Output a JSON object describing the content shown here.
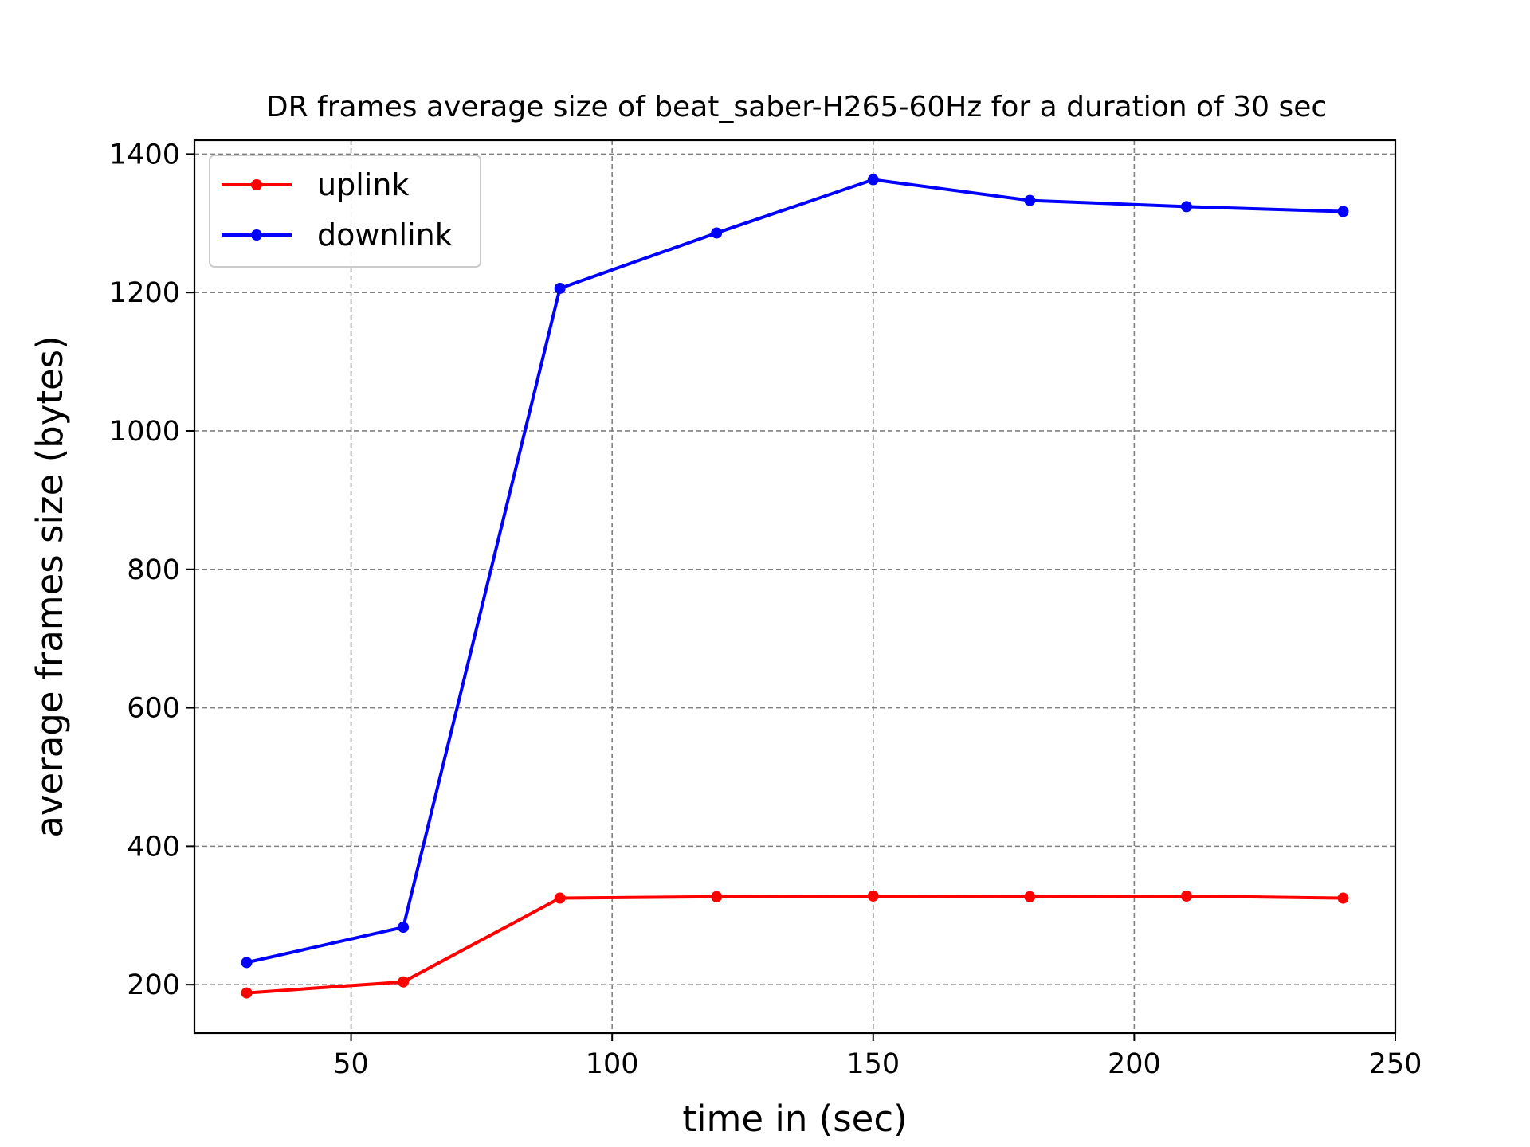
{
  "chart_data": {
    "type": "line",
    "title": "DR frames average size of beat_saber-H265-60Hz for a duration of 30 sec",
    "xlabel": "time in (sec)",
    "ylabel": "average frames size (bytes)",
    "xlim": [
      20,
      250
    ],
    "ylim": [
      130,
      1420
    ],
    "xticks": [
      50,
      100,
      150,
      200,
      250
    ],
    "yticks": [
      200,
      400,
      600,
      800,
      1000,
      1200,
      1400
    ],
    "grid": true,
    "legend_position": "upper-left",
    "x": [
      30,
      60,
      90,
      120,
      150,
      180,
      210,
      240
    ],
    "series": [
      {
        "name": "uplink",
        "color": "#ff0000",
        "values": [
          188,
          204,
          325,
          327,
          328,
          327,
          328,
          325
        ]
      },
      {
        "name": "downlink",
        "color": "#0000ff",
        "values": [
          232,
          283,
          1206,
          1286,
          1363,
          1333,
          1324,
          1317
        ]
      }
    ]
  }
}
